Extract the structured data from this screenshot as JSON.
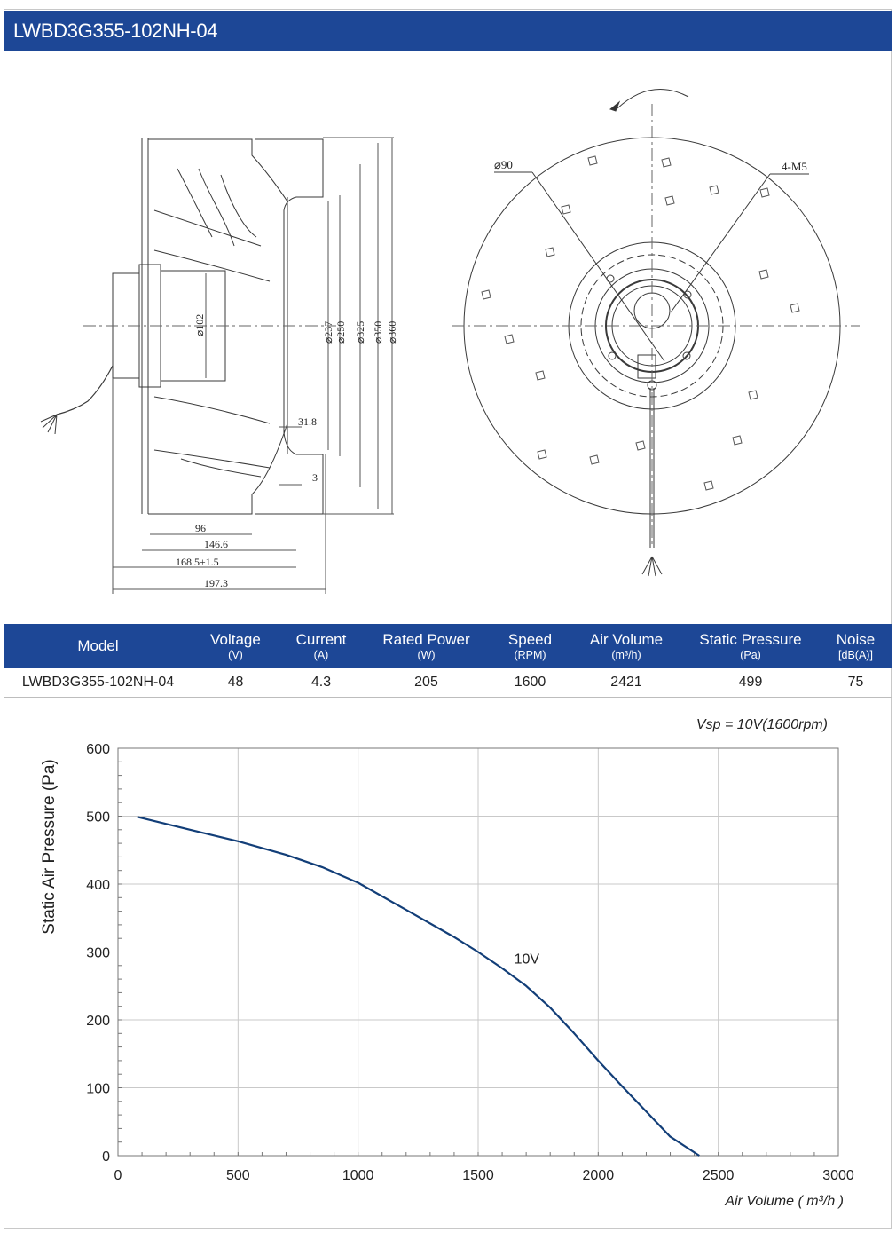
{
  "title": "LWBD3G355-102NH-04",
  "drawing": {
    "side_dims": [
      "⌀102",
      "⌀237",
      "⌀250",
      "⌀325",
      "⌀350",
      "⌀360",
      "31.8",
      "3",
      "96",
      "146.6",
      "168.5±1.5",
      "197.3"
    ],
    "front_labels": [
      "⌀90",
      "4-M5"
    ]
  },
  "table": {
    "headers": [
      {
        "name": "Model",
        "unit": ""
      },
      {
        "name": "Voltage",
        "unit": "(V)"
      },
      {
        "name": "Current",
        "unit": "(A)"
      },
      {
        "name": "Rated Power",
        "unit": "(W)"
      },
      {
        "name": "Speed",
        "unit": "(RPM)"
      },
      {
        "name": "Air Volume",
        "unit": "(m³/h)"
      },
      {
        "name": "Static Pressure",
        "unit": "(Pa)"
      },
      {
        "name": "Noise",
        "unit": "[dB(A)]"
      }
    ],
    "row": [
      "LWBD3G355-102NH-04",
      "48",
      "4.3",
      "205",
      "1600",
      "2421",
      "499",
      "75"
    ]
  },
  "chart_data": {
    "type": "line",
    "title": "Vsp = 10V(1600rpm)",
    "xlabel": "Air Volume ( m³/h )",
    "ylabel": "Static Air Pressure  (Pa)",
    "xlim": [
      0,
      3000
    ],
    "ylim": [
      0,
      600
    ],
    "xticks": [
      0,
      500,
      1000,
      1500,
      2000,
      2500,
      3000
    ],
    "yticks": [
      0,
      100,
      200,
      300,
      400,
      500,
      600
    ],
    "grid": true,
    "series": [
      {
        "name": "10V",
        "color": "#123e78",
        "x": [
          80,
          300,
          500,
          700,
          850,
          1000,
          1200,
          1400,
          1500,
          1600,
          1700,
          1800,
          1900,
          2000,
          2100,
          2200,
          2300,
          2421
        ],
        "y": [
          499,
          480,
          463,
          443,
          425,
          402,
          362,
          322,
          300,
          276,
          250,
          218,
          180,
          140,
          102,
          65,
          28,
          0
        ]
      }
    ]
  }
}
